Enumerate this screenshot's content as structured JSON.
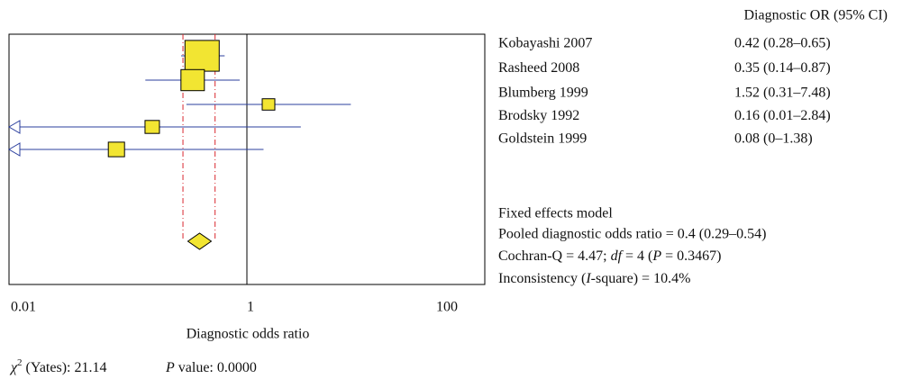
{
  "chart_data": {
    "type": "forest",
    "xlabel": "Diagnostic odds ratio",
    "xscale": "log",
    "xlim": [
      0.01,
      100
    ],
    "xticks": [
      0.01,
      1,
      100
    ],
    "reference": 1,
    "column_header": "Diagnostic OR (95% CI)",
    "categories": [
      "Kobayashi 2007",
      "Rasheed 2008",
      "Blumberg 1999",
      "Brodsky 1992",
      "Goldstein 1999"
    ],
    "values": [
      0.42,
      0.35,
      1.52,
      0.16,
      0.08
    ],
    "lower": [
      0.28,
      0.14,
      0.31,
      0.01,
      0
    ],
    "upper": [
      0.65,
      0.87,
      7.48,
      2.84,
      1.38
    ],
    "value_labels": [
      "0.42 (0.28–0.65)",
      "0.35 (0.14–0.87)",
      "1.52 (0.31–7.48)",
      "0.16 (0.01–2.84)",
      "0.08 (0–1.38)"
    ],
    "pooled": {
      "value": 0.4,
      "lower": 0.29,
      "upper": 0.54
    },
    "color": "#2b3f9e",
    "box_color": "#f2e532",
    "pooled_line_color": "#d9282f",
    "model": "Fixed effects model",
    "pooled_text": "Pooled diagnostic odds ratio = 0.4 (0.29–0.54)",
    "cochran": [
      "Cochran-Q = 4.47; ",
      "df",
      " = 4 (",
      "P",
      " = 0.3467)"
    ],
    "inconsistency": [
      "Inconsistency (",
      "I",
      "-square) = 10.4%"
    ],
    "chi": [
      "χ",
      "2",
      " (Yates): 21.14"
    ],
    "pvalue": [
      "P",
      " value: 0.0000"
    ]
  }
}
